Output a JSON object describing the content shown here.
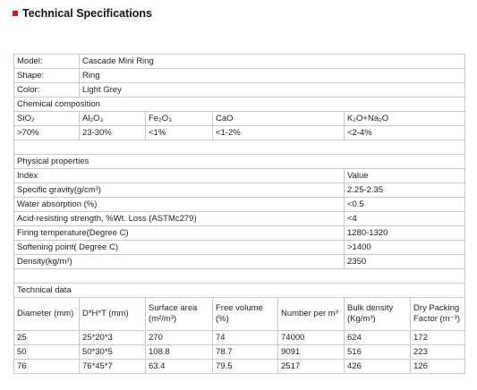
{
  "header": {
    "title": "Technical Specifications"
  },
  "general": {
    "rows": [
      [
        "Model:",
        "Cascade Mini Ring"
      ],
      [
        "Shape:",
        "Ring"
      ],
      [
        "Color:",
        "Light Grey"
      ]
    ]
  },
  "chemical": {
    "title": "Chemical composition",
    "headers": [
      "SiO₂",
      "Al₂O₃",
      "Fe₂O₃",
      "CaO",
      "K₂O+Na₂O"
    ],
    "values": [
      ">70%",
      "23-30%",
      "<1%",
      "<1-2%",
      "<2-4%"
    ]
  },
  "physical": {
    "title": "Physical properties",
    "headers": [
      "Index",
      "Value"
    ],
    "rows": [
      [
        "Specific gravity(g/cm³)",
        "2.25-2.35"
      ],
      [
        "Water absorption (%)",
        "<0.5"
      ],
      [
        "Acid-resisting strength, %Wt. Loss (ASTMc279)",
        "<4"
      ],
      [
        "Firing temperature(Degree C)",
        "1280-1320"
      ],
      [
        "Softening point( Degree C)",
        ">1400"
      ],
      [
        "Density(kg/m³)",
        "2350"
      ]
    ]
  },
  "technical": {
    "title": "Technical data",
    "headers": [
      "Diameter (mm)",
      "D*H*T (mm)",
      "Surface area (m²/m³)",
      "Free volume (%)",
      "Number per m³",
      "Bulk density (Kg/m³)",
      "Dry Packing Factor (m⁻³)"
    ],
    "rows": [
      [
        "25",
        "25*20*3",
        "270",
        "74",
        "74000",
        "624",
        "172"
      ],
      [
        "50",
        "50*30*5",
        "108.8",
        "78.7",
        "9091",
        "516",
        "223"
      ],
      [
        "76",
        "76*45*7",
        "63.4",
        "79.5",
        "2517",
        "426",
        "126"
      ]
    ]
  }
}
